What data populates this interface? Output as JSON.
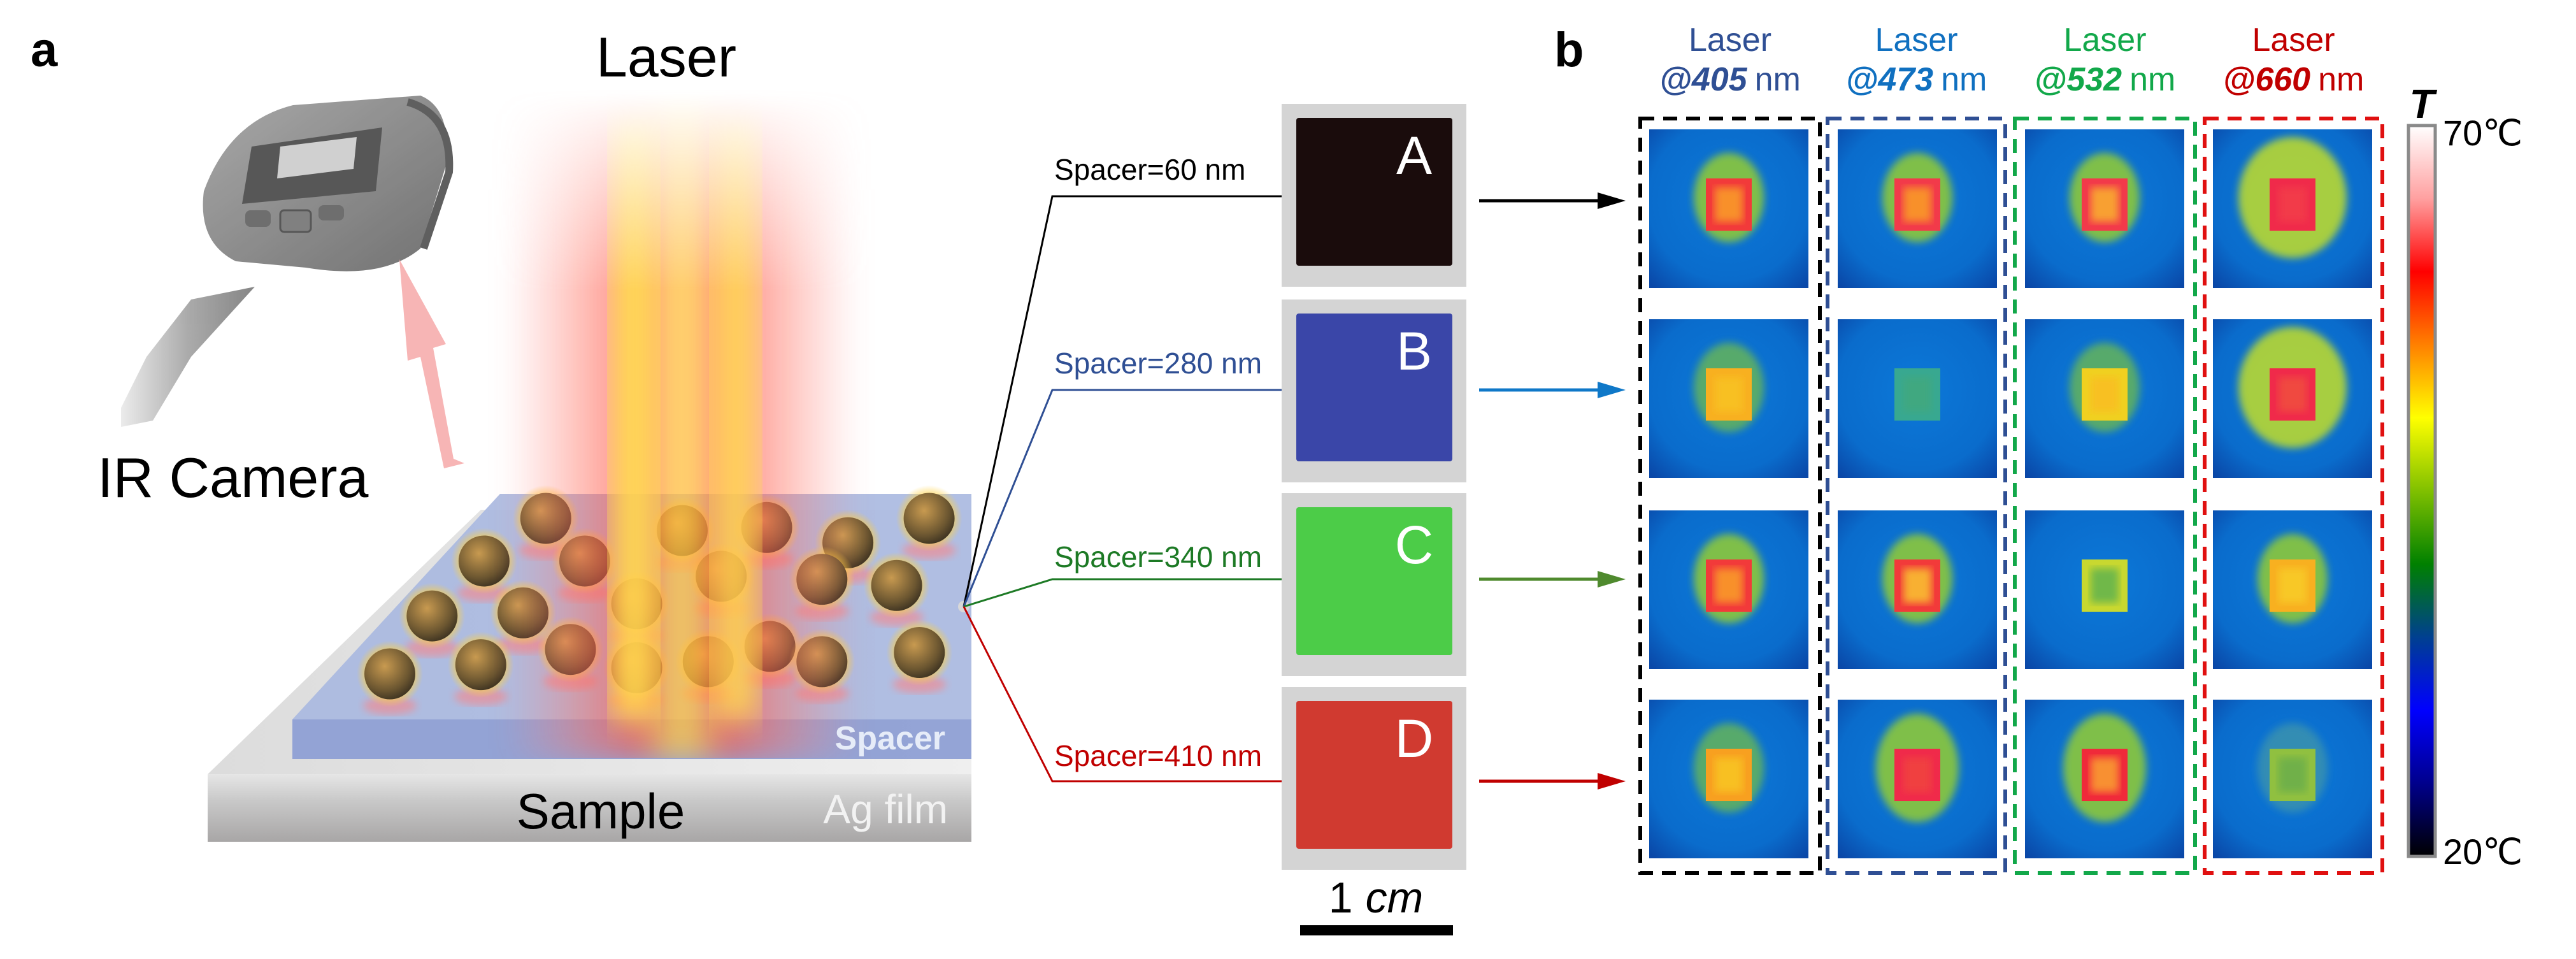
{
  "panel_a": {
    "label": "a",
    "laser_label": "Laser",
    "camera_label": "IR Camera",
    "spacer_label": "Spacer",
    "sample_label": "Sample",
    "ag_film_label": "Ag film",
    "spacers": [
      {
        "label": "Spacer=60 nm",
        "color": "#000000",
        "sample": "A",
        "sample_color": "#1a0c0c",
        "arrow_color": "#000000"
      },
      {
        "label": "Spacer=280 nm",
        "color": "#2f4f94",
        "sample": "B",
        "sample_color": "#3a46a8",
        "arrow_color": "#0f78c8"
      },
      {
        "label": "Spacer=340 nm",
        "color": "#1d7a25",
        "sample": "C",
        "sample_color": "#4ccc48",
        "arrow_color": "#4f8a2e"
      },
      {
        "label": "Spacer=410 nm",
        "color": "#c00000",
        "sample": "D",
        "sample_color": "#d03a30",
        "arrow_color": "#c00000"
      }
    ],
    "scale_bar": {
      "number": "1",
      "unit": "cm"
    }
  },
  "panel_b": {
    "label": "b",
    "columns": [
      {
        "line1": "Laser",
        "at": "@",
        "wavelength": "405",
        "unit": "nm",
        "color": "#2f4f94",
        "box_color": "#000000"
      },
      {
        "line1": "Laser",
        "at": "@",
        "wavelength": "473",
        "unit": "nm",
        "color": "#1070c0",
        "box_color": "#2f4f94"
      },
      {
        "line1": "Laser",
        "at": "@",
        "wavelength": "532",
        "unit": "nm",
        "color": "#12a84a",
        "box_color": "#12a84a"
      },
      {
        "line1": "Laser",
        "at": "@",
        "wavelength": "660",
        "unit": "nm",
        "color": "#c00000",
        "box_color": "#e01010"
      }
    ],
    "thermal_images": [
      [
        {
          "core": "#f23a3a",
          "inner": "#f8902a",
          "halo": "#8cc83a",
          "halo_size": "small"
        },
        {
          "core": "#f23a4a",
          "inner": "#f8902a",
          "halo": "#8cc83a",
          "halo_size": "small"
        },
        {
          "core": "#f23a4a",
          "inner": "#f8a030",
          "halo": "#8cc83a",
          "halo_size": "small"
        },
        {
          "core": "#f02a4a",
          "inner": "#f23a4a",
          "halo": "#b8d830",
          "halo_size": "large"
        }
      ],
      [
        {
          "core": "#f8b020",
          "inner": "#f8c020",
          "halo": "#60b060",
          "halo_size": "small"
        },
        {
          "core": "#38a890",
          "inner": "#40a880",
          "halo": "#1060c0",
          "halo_size": "none"
        },
        {
          "core": "#f0d020",
          "inner": "#f8c020",
          "halo": "#60b060",
          "halo_size": "small"
        },
        {
          "core": "#f02a4a",
          "inner": "#f04a40",
          "halo": "#b8d830",
          "halo_size": "large"
        }
      ],
      [
        {
          "core": "#f23a3a",
          "inner": "#f8902a",
          "halo": "#8cc83a",
          "halo_size": "small"
        },
        {
          "core": "#f23a3a",
          "inner": "#f8b030",
          "halo": "#8cc83a",
          "halo_size": "small"
        },
        {
          "core": "#c8d830",
          "inner": "#70b848",
          "halo": "#1060c0",
          "halo_size": "none"
        },
        {
          "core": "#f8b020",
          "inner": "#f8c828",
          "halo": "#8cc83a",
          "halo_size": "small"
        }
      ],
      [
        {
          "core": "#f8a020",
          "inner": "#f8c020",
          "halo": "#60b060",
          "halo_size": "small"
        },
        {
          "core": "#f02a4a",
          "inner": "#f04040",
          "halo": "#8cc83a",
          "halo_size": "medium"
        },
        {
          "core": "#f02a3a",
          "inner": "#f89030",
          "halo": "#8cc83a",
          "halo_size": "medium"
        },
        {
          "core": "#90c040",
          "inner": "#70b048",
          "halo": "#3890b0",
          "halo_size": "small"
        }
      ]
    ],
    "colorbar": {
      "symbol": "T",
      "max_label": "70℃",
      "min_label": "20℃",
      "max": 70,
      "min": 20,
      "colors": [
        "#000000",
        "#00008c",
        "#0000ff",
        "#004090",
        "#008000",
        "#80c000",
        "#ffff00",
        "#ff8000",
        "#ff0000",
        "#ffa0a0",
        "#ffffff"
      ]
    }
  }
}
